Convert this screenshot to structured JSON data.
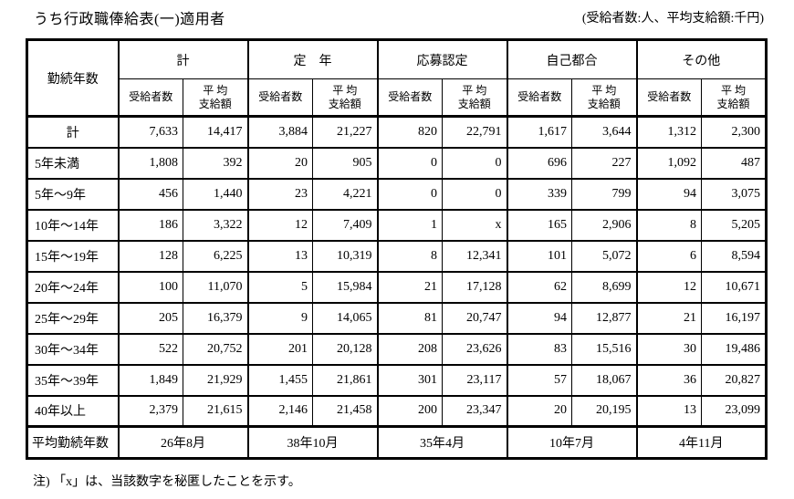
{
  "page": {
    "title": "うち行政職俸給表(一)適用者",
    "unit_note": "(受給者数:人、平均支給額:千円)",
    "footnote": "注) 「x」は、当該数字を秘匿したことを示す。"
  },
  "table": {
    "row_header": "勤続年数",
    "groups": [
      "計",
      "定　年",
      "応募認定",
      "自己都合",
      "その他"
    ],
    "sub_headers": [
      "受給者数",
      "平 均\n支給額"
    ],
    "rows": [
      {
        "label": "計",
        "center": true,
        "values": [
          "7,633",
          "14,417",
          "3,884",
          "21,227",
          "820",
          "22,791",
          "1,617",
          "3,644",
          "1,312",
          "2,300"
        ]
      },
      {
        "label": "5年未満",
        "values": [
          "1,808",
          "392",
          "20",
          "905",
          "0",
          "0",
          "696",
          "227",
          "1,092",
          "487"
        ]
      },
      {
        "label": "5年〜9年",
        "values": [
          "456",
          "1,440",
          "23",
          "4,221",
          "0",
          "0",
          "339",
          "799",
          "94",
          "3,075"
        ]
      },
      {
        "label": "10年〜14年",
        "values": [
          "186",
          "3,322",
          "12",
          "7,409",
          "1",
          "x",
          "165",
          "2,906",
          "8",
          "5,205"
        ]
      },
      {
        "label": "15年〜19年",
        "values": [
          "128",
          "6,225",
          "13",
          "10,319",
          "8",
          "12,341",
          "101",
          "5,072",
          "6",
          "8,594"
        ]
      },
      {
        "label": "20年〜24年",
        "values": [
          "100",
          "11,070",
          "5",
          "15,984",
          "21",
          "17,128",
          "62",
          "8,699",
          "12",
          "10,671"
        ]
      },
      {
        "label": "25年〜29年",
        "values": [
          "205",
          "16,379",
          "9",
          "14,065",
          "81",
          "20,747",
          "94",
          "12,877",
          "21",
          "16,197"
        ]
      },
      {
        "label": "30年〜34年",
        "values": [
          "522",
          "20,752",
          "201",
          "20,128",
          "208",
          "23,626",
          "83",
          "15,516",
          "30",
          "19,486"
        ]
      },
      {
        "label": "35年〜39年",
        "values": [
          "1,849",
          "21,929",
          "1,455",
          "21,861",
          "301",
          "23,117",
          "57",
          "18,067",
          "36",
          "20,827"
        ]
      },
      {
        "label": "40年以上",
        "values": [
          "2,379",
          "21,615",
          "2,146",
          "21,458",
          "200",
          "23,347",
          "20",
          "20,195",
          "13",
          "23,099"
        ]
      }
    ],
    "footer": {
      "label": "平均勤続年数",
      "values": [
        "26年8月",
        "38年10月",
        "35年4月",
        "10年7月",
        "4年11月"
      ]
    }
  }
}
